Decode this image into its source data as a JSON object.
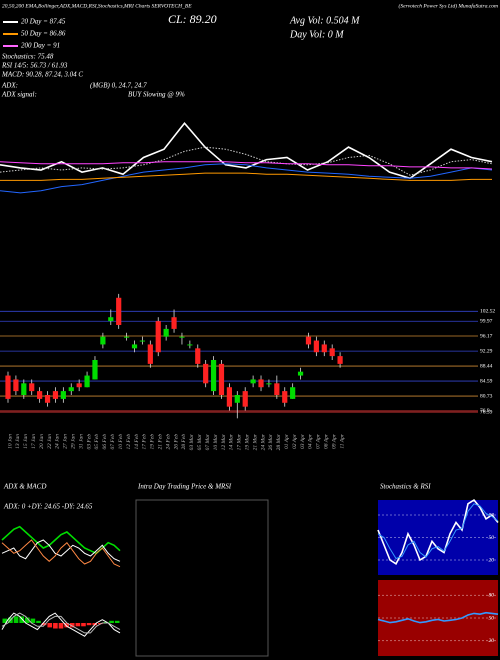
{
  "header": {
    "source": "20,50,200 EMA,Bollinger,ADX,MACD,RSI,Stochastics,MRI Charts SERVOTECH_BE",
    "company": "(Servotech Power Sys Ltd) MunafaSutra.com",
    "close": "CL: 89.20",
    "avg_vol": "Avg Vol: 0.504 M",
    "day_vol": "Day Vol: 0 M",
    "stochastics": "Stochastics: 75.48",
    "rsi": "RSI 14/5: 56.73 / 61.93",
    "macd": "MACD: 90.28, 87.24, 3.04 C",
    "adx": "ADX:",
    "mgb": "(MGB) 0, 24.7, 24.7",
    "adx_signal": "ADX signal:",
    "signal": "BUY Slowing @ 9%"
  },
  "legend": [
    {
      "name": "20 Day = 87.45",
      "color": "#ffffff"
    },
    {
      "name": "50 Day = 86.86",
      "color": "#ff9900"
    },
    {
      "name": "200 Day = 91",
      "color": "#ff66ff"
    }
  ],
  "chart_data": [
    {
      "type": "candlestick",
      "up_color": "#00dd00",
      "down_color": "#ff2222",
      "categories": [
        "10 Jan",
        "13 Jan",
        "15 Jan",
        "17 Jan",
        "20 Jan",
        "22 Jan",
        "24 Jan",
        "27 Jan",
        "29 Jan",
        "31 Jan",
        "03 Feb",
        "05 Feb",
        "06 Feb",
        "07 Feb",
        "10 Feb",
        "12 Feb",
        "14 Feb",
        "17 Feb",
        "19 Feb",
        "21 Feb",
        "24 Feb",
        "26 Feb",
        "28 Feb",
        "03 Mar",
        "05 Mar",
        "07 Mar",
        "10 Mar",
        "12 Mar",
        "14 Mar",
        "17 Mar",
        "19 Mar",
        "21 Mar",
        "24 Mar",
        "26 Mar",
        "28 Mar",
        "01 Apr",
        "02 Apr",
        "03 Apr",
        "04 Apr",
        "07 Apr",
        "08 Apr",
        "09 Apr",
        "11 Apr"
      ],
      "open": [
        86,
        85,
        81,
        84,
        82,
        81,
        82,
        80,
        82,
        84,
        83,
        85,
        94,
        100,
        106,
        96,
        93,
        95,
        94,
        100,
        96,
        101,
        96,
        94,
        93,
        89,
        82,
        89,
        83,
        79,
        82,
        84,
        85,
        84,
        84,
        82,
        80,
        86,
        96,
        95,
        94,
        93,
        91
      ],
      "high": [
        87,
        86,
        85,
        85,
        83,
        82,
        83,
        83,
        84,
        85,
        87,
        91,
        97,
        103,
        107,
        97,
        95,
        96,
        95,
        101,
        99,
        103,
        97,
        95,
        94,
        90,
        91,
        90,
        84,
        82,
        83,
        86,
        86,
        85,
        86,
        83,
        84,
        88,
        97,
        96,
        95,
        94,
        92
      ],
      "low": [
        79,
        81,
        80,
        81,
        79,
        78,
        79,
        79,
        81,
        82,
        83,
        85,
        93,
        99,
        98,
        95,
        92,
        94,
        88,
        91,
        95,
        97,
        94,
        93,
        88,
        83,
        81,
        80,
        77,
        75,
        77,
        83,
        82,
        83,
        80,
        78,
        80,
        85,
        93,
        91,
        91,
        90,
        88
      ],
      "close": [
        80,
        82,
        84,
        82,
        80,
        79,
        80,
        82,
        83,
        83,
        86,
        90,
        96,
        101,
        99,
        96,
        94,
        95,
        89,
        92,
        98,
        98,
        96,
        94,
        89,
        84,
        90,
        81,
        78,
        81,
        78,
        85,
        83,
        84,
        81,
        79,
        83,
        87,
        94,
        92,
        92,
        91,
        89
      ],
      "ylim": [
        72,
        108
      ],
      "yticks": [
        102.52,
        99.97,
        96.17,
        92.29,
        88.44,
        84.59,
        80.73,
        76.9,
        76.59
      ],
      "grid_colors": [
        "#3344cc",
        "#3344cc",
        "#cc8833",
        "#3344cc",
        "#cc8833",
        "#3344cc",
        "#cc8833",
        "#cc3333",
        "#cc3333"
      ]
    },
    {
      "type": "line",
      "ylim": [
        0,
        100
      ],
      "series": [
        {
          "color": "#ffffff",
          "dash": false,
          "values": [
            55,
            52,
            50,
            58,
            48,
            52,
            46,
            62,
            70,
            95,
            72,
            55,
            52,
            60,
            62,
            50,
            58,
            72,
            62,
            48,
            42,
            56,
            70,
            62,
            58
          ]
        },
        {
          "color": "#cccccc",
          "dash": true,
          "values": [
            48,
            50,
            52,
            50,
            52,
            51,
            52,
            55,
            60,
            68,
            72,
            70,
            65,
            58,
            56,
            55,
            57,
            62,
            64,
            56,
            45,
            50,
            58,
            60,
            56
          ]
        },
        {
          "color": "#2266ff",
          "dash": false,
          "values": [
            30,
            28,
            30,
            34,
            36,
            40,
            44,
            48,
            50,
            52,
            55,
            56,
            55,
            52,
            50,
            48,
            47,
            46,
            44,
            43,
            42,
            44,
            48,
            52,
            50
          ]
        },
        {
          "color": "#ff44ff",
          "dash": false,
          "values": [
            58,
            57,
            56,
            56,
            56,
            56,
            57,
            57,
            58,
            58,
            58,
            58,
            57,
            57,
            56,
            56,
            55,
            55,
            54,
            54,
            53,
            53,
            52,
            52,
            51
          ]
        },
        {
          "color": "#ff9900",
          "dash": false,
          "values": [
            40,
            40,
            40,
            41,
            41,
            42,
            43,
            44,
            45,
            46,
            47,
            47,
            47,
            46,
            46,
            45,
            44,
            43,
            42,
            41,
            40,
            40,
            40,
            41,
            41
          ]
        }
      ]
    },
    {
      "type": "line",
      "title": "ADX & MACD",
      "annotation": "ADX: 0  +DY: 24.65  -DY: 24.65",
      "ylim": [
        0,
        60
      ],
      "series": [
        {
          "color": "#00dd00",
          "dash": false,
          "values": [
            30,
            34,
            38,
            40,
            36,
            32,
            28,
            24,
            26,
            30,
            34,
            36,
            32,
            28,
            24,
            22,
            20,
            24,
            28,
            26,
            22
          ]
        },
        {
          "color": "#ffffff",
          "dash": false,
          "values": [
            20,
            22,
            24,
            18,
            16,
            22,
            28,
            30,
            26,
            20,
            18,
            22,
            26,
            24,
            20,
            18,
            22,
            26,
            20,
            16,
            14
          ]
        },
        {
          "color": "#ff8844",
          "dash": false,
          "values": [
            28,
            24,
            20,
            22,
            26,
            30,
            24,
            18,
            14,
            18,
            24,
            28,
            22,
            16,
            12,
            14,
            20,
            24,
            18,
            12,
            10
          ]
        }
      ]
    },
    {
      "type": "line",
      "ylim": [
        80,
        100
      ],
      "series": [
        {
          "color": "#ffffff",
          "dash": false,
          "values": [
            88,
            91,
            93,
            92,
            90,
            89,
            88,
            90,
            92,
            93,
            91,
            89,
            88,
            87,
            86,
            88,
            90,
            91,
            90,
            88,
            87
          ]
        },
        {
          "color": "#bbbbbb",
          "dash": false,
          "values": [
            89,
            90,
            92,
            93,
            92,
            90,
            89,
            89,
            91,
            92,
            92,
            90,
            89,
            88,
            87,
            87,
            89,
            90,
            90,
            89,
            88
          ]
        }
      ],
      "bars": [
        2,
        2.5,
        3,
        3,
        2.5,
        2,
        1,
        -1,
        -2,
        -2.5,
        -2.5,
        -2,
        -2,
        -1.5,
        -1.5,
        -1,
        -1,
        -0.5,
        0.5,
        1,
        1
      ]
    },
    {
      "type": "line",
      "title": "Intra Day Trading Price & MRSI",
      "ylim": [
        0,
        100
      ],
      "series": []
    },
    {
      "type": "line",
      "title": "Stochastics & RSI",
      "background": "#0000aa",
      "ylim": [
        0,
        100
      ],
      "yticks": [
        20,
        50,
        80
      ],
      "series": [
        {
          "color": "#ffffff",
          "dash": false,
          "values": [
            60,
            40,
            20,
            15,
            30,
            55,
            40,
            20,
            25,
            45,
            35,
            30,
            55,
            70,
            60,
            95,
            100,
            90,
            75,
            80,
            70
          ]
        },
        {
          "color": "#3399ff",
          "dash": false,
          "values": [
            55,
            50,
            35,
            22,
            25,
            40,
            45,
            30,
            24,
            35,
            38,
            32,
            45,
            60,
            62,
            85,
            95,
            92,
            82,
            78,
            72
          ]
        }
      ]
    },
    {
      "type": "line",
      "background": "#990000",
      "ylim": [
        0,
        100
      ],
      "yticks": [
        20,
        50,
        80
      ],
      "series": [
        {
          "color": "#3399ff",
          "dash": false,
          "values": [
            48,
            46,
            44,
            45,
            47,
            49,
            46,
            44,
            45,
            47,
            48,
            46,
            47,
            48,
            50,
            54,
            56,
            55,
            57,
            56,
            55
          ]
        }
      ]
    }
  ]
}
